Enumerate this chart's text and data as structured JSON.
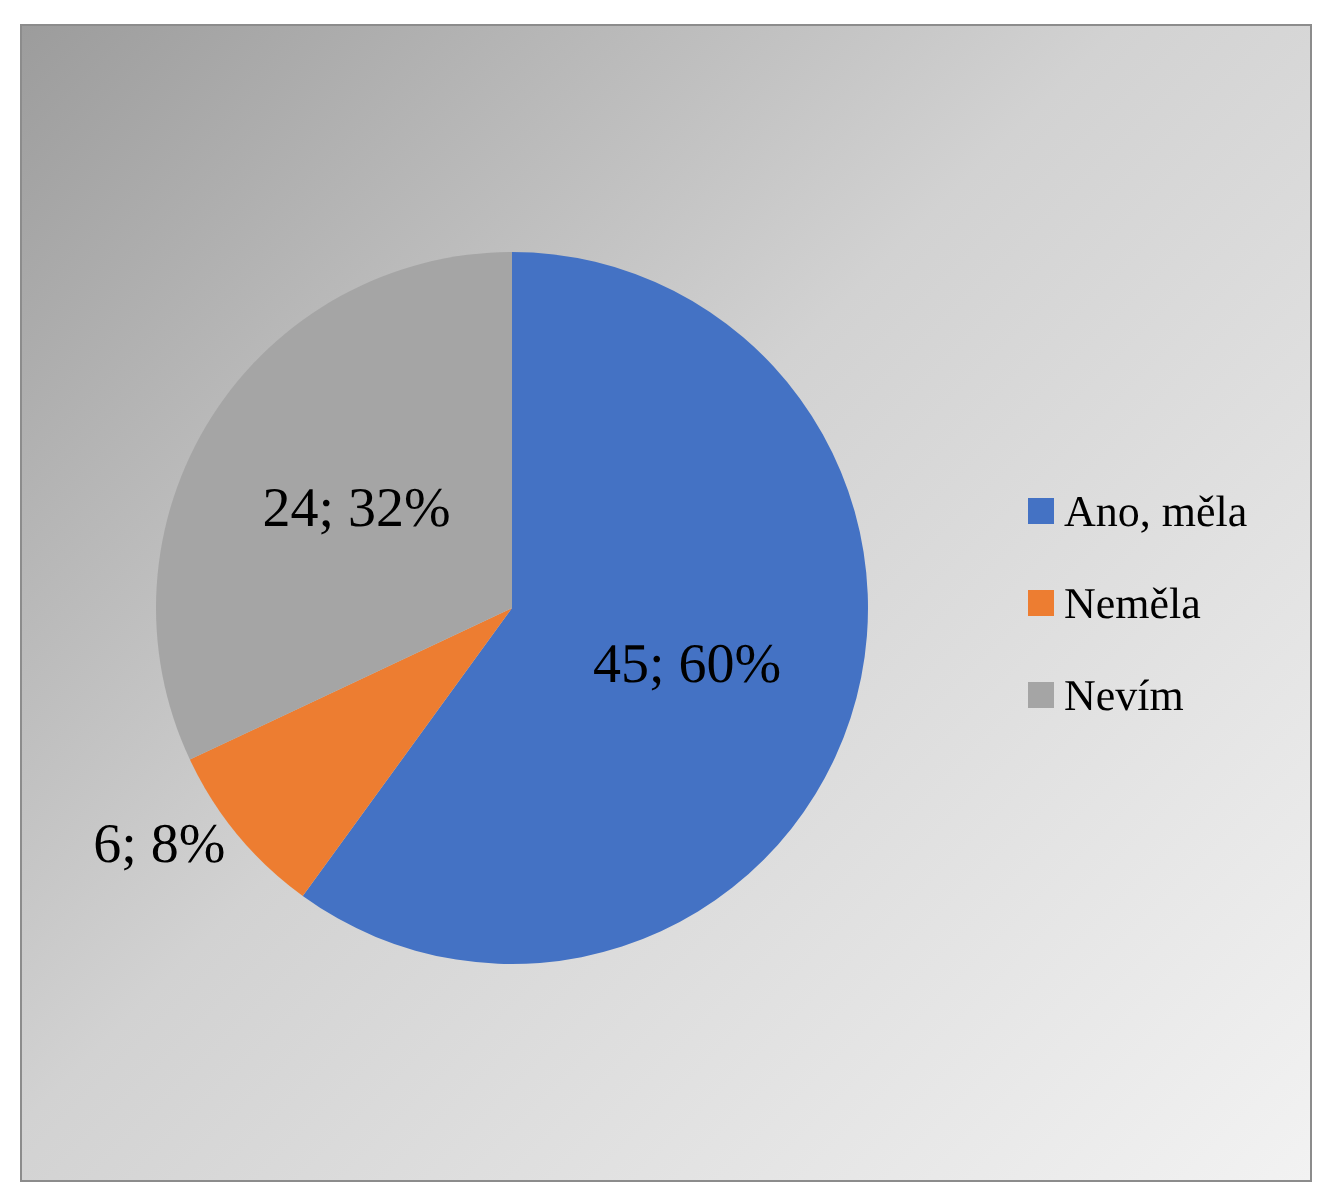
{
  "chart_data": {
    "type": "pie",
    "categories": [
      "Ano, měla",
      "Neměla",
      "Nevím"
    ],
    "values": [
      45,
      6,
      24
    ],
    "colors": [
      "#4472c4",
      "#ed7d31",
      "#a5a5a5"
    ],
    "value_labels": [
      "45; 60%",
      "6; 8%",
      "24; 32%"
    ],
    "legend": "right"
  }
}
